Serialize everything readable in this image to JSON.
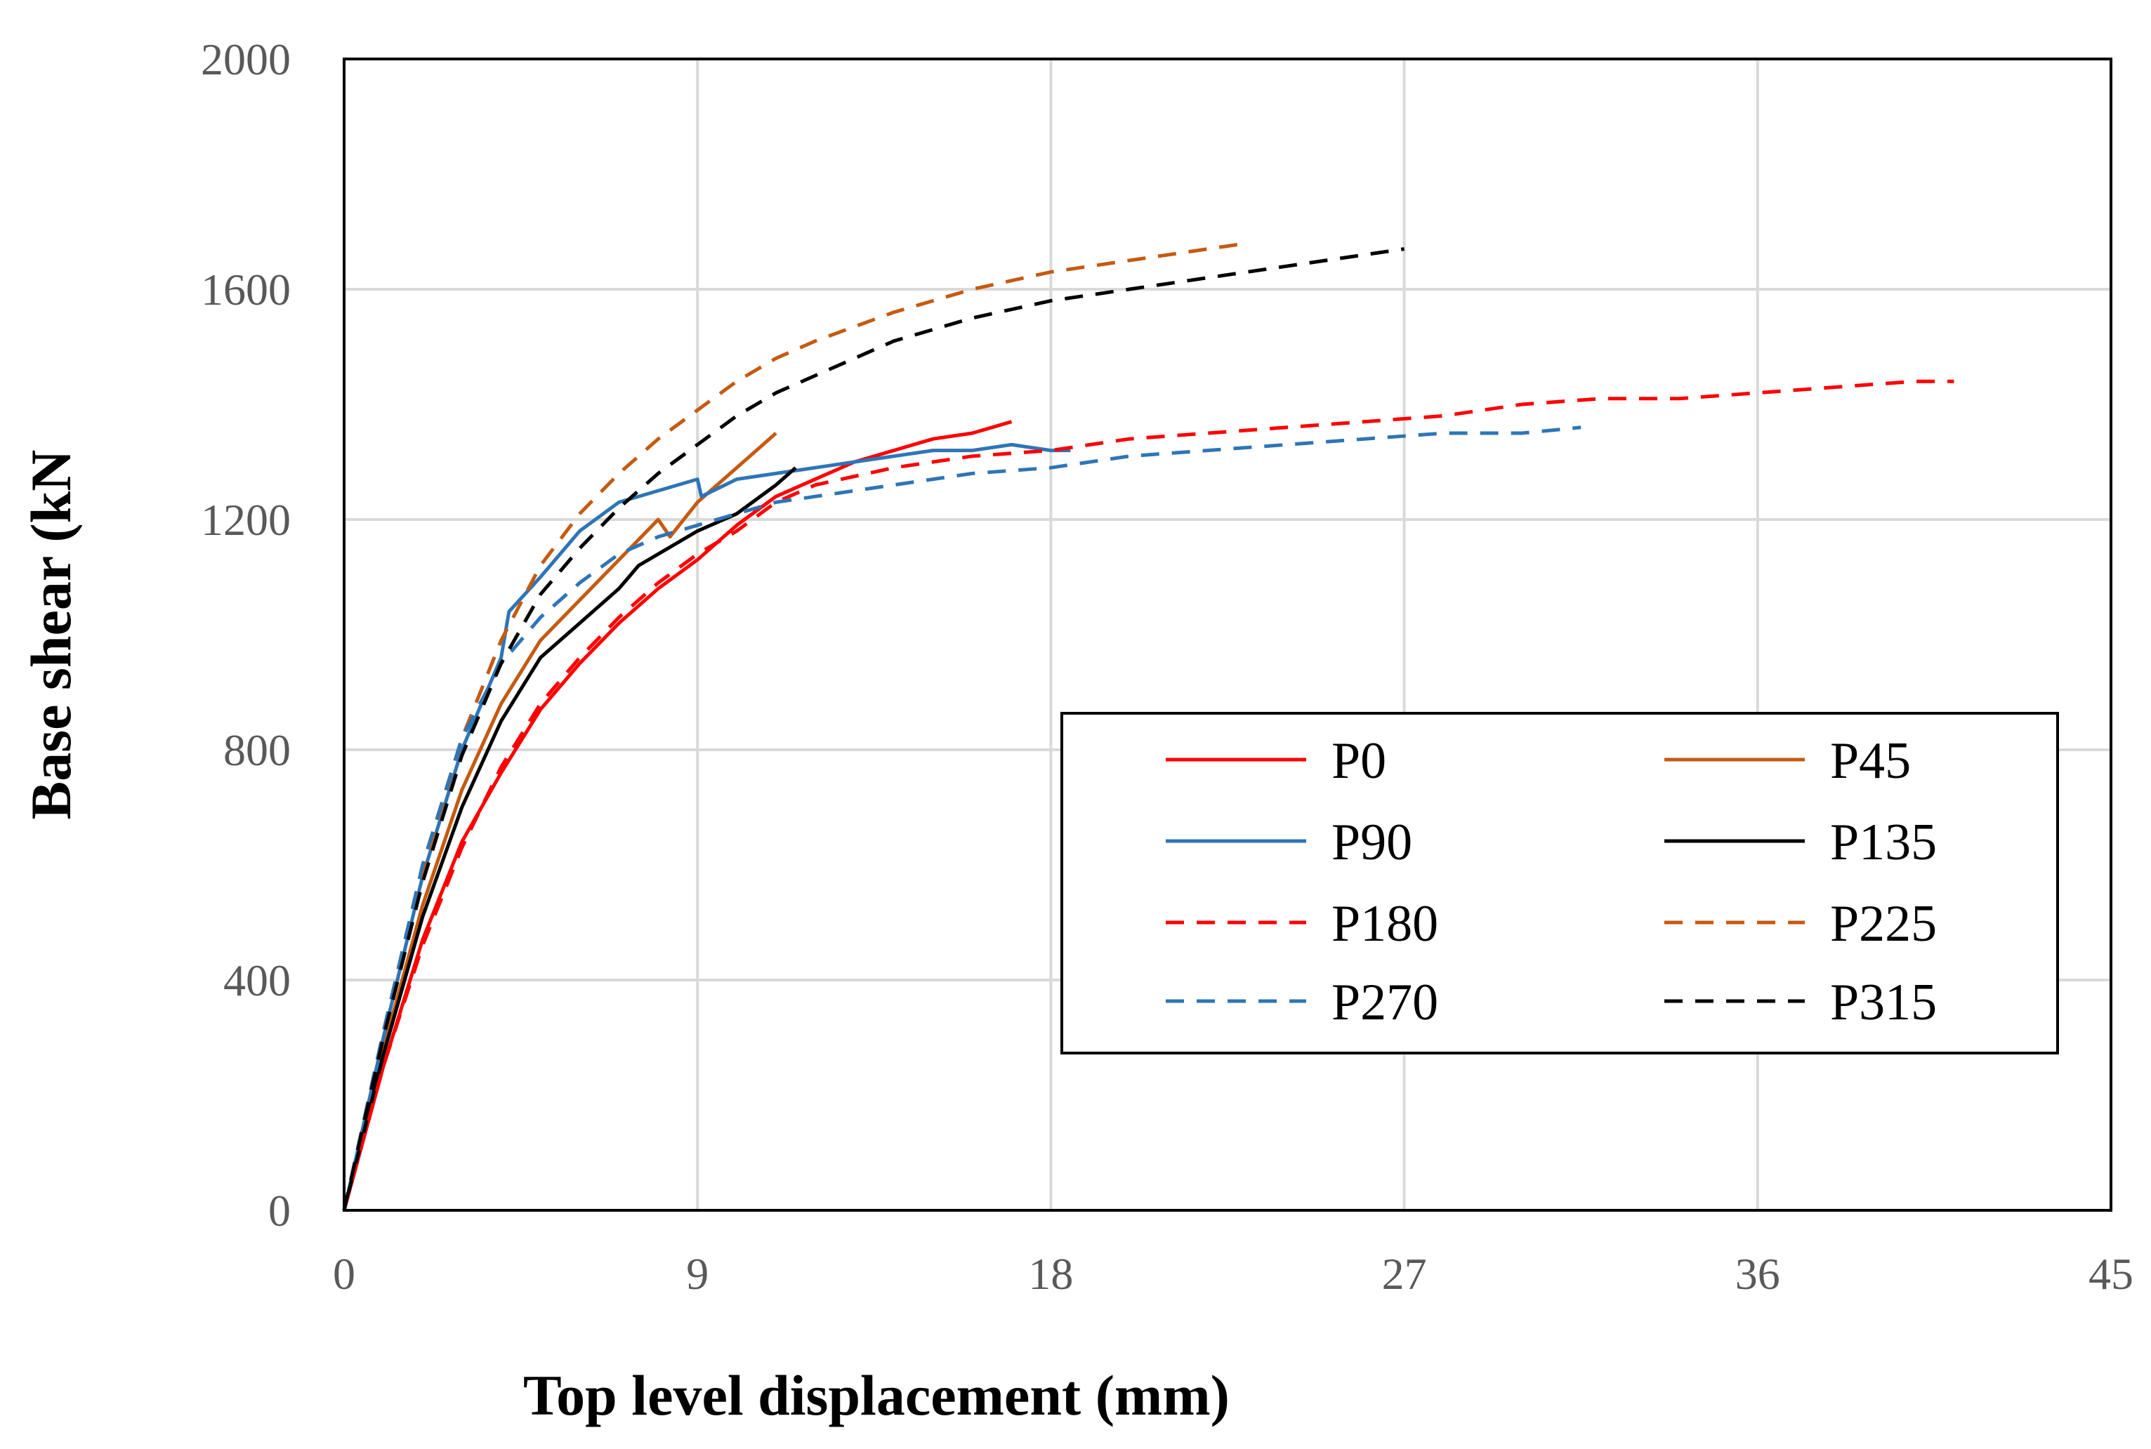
{
  "chart_data": {
    "type": "line",
    "title": "",
    "xlabel": "Top level displacement (mm)",
    "ylabel": "Base shear (kN",
    "xlim": [
      0,
      45
    ],
    "ylim": [
      0,
      2000
    ],
    "xticks": [
      0,
      9,
      18,
      27,
      36,
      45
    ],
    "yticks": [
      0,
      400,
      800,
      1200,
      1600,
      2000
    ],
    "xtick_labels": [
      "0",
      "9",
      "18",
      "27",
      "36",
      "45"
    ],
    "ytick_labels": [
      "0",
      "400",
      "800",
      "1200",
      "1600",
      "2000"
    ],
    "grid": true,
    "legend_position": "center-right",
    "series": [
      {
        "name": "P0",
        "color": "#ff0000",
        "dash": "solid",
        "points": [
          [
            0,
            0
          ],
          [
            1,
            250
          ],
          [
            2,
            470
          ],
          [
            3,
            640
          ],
          [
            4,
            760
          ],
          [
            5,
            870
          ],
          [
            6,
            950
          ],
          [
            7,
            1020
          ],
          [
            8,
            1080
          ],
          [
            9,
            1130
          ],
          [
            10,
            1190
          ],
          [
            11,
            1240
          ],
          [
            12,
            1270
          ],
          [
            13,
            1300
          ],
          [
            14,
            1320
          ],
          [
            15,
            1340
          ],
          [
            16,
            1350
          ],
          [
            17,
            1370
          ]
        ]
      },
      {
        "name": "P45",
        "color": "#c55a11",
        "dash": "solid",
        "points": [
          [
            0,
            0
          ],
          [
            1,
            280
          ],
          [
            2,
            530
          ],
          [
            3,
            730
          ],
          [
            4,
            880
          ],
          [
            5,
            990
          ],
          [
            6,
            1060
          ],
          [
            7,
            1130
          ],
          [
            8,
            1200
          ],
          [
            8.3,
            1170
          ],
          [
            9,
            1230
          ],
          [
            10,
            1290
          ],
          [
            10.5,
            1320
          ],
          [
            11,
            1350
          ]
        ]
      },
      {
        "name": "P90",
        "color": "#2e75b6",
        "dash": "solid",
        "points": [
          [
            0,
            0
          ],
          [
            1,
            300
          ],
          [
            2,
            580
          ],
          [
            3,
            800
          ],
          [
            4,
            960
          ],
          [
            4.2,
            1040
          ],
          [
            5,
            1100
          ],
          [
            6,
            1180
          ],
          [
            7,
            1230
          ],
          [
            8,
            1250
          ],
          [
            9,
            1270
          ],
          [
            9.1,
            1240
          ],
          [
            10,
            1270
          ],
          [
            11,
            1280
          ],
          [
            12,
            1290
          ],
          [
            13,
            1300
          ],
          [
            14,
            1310
          ],
          [
            15,
            1320
          ],
          [
            16,
            1320
          ],
          [
            17,
            1330
          ],
          [
            18,
            1320
          ],
          [
            18.5,
            1320
          ]
        ]
      },
      {
        "name": "P135",
        "color": "#000000",
        "dash": "solid",
        "points": [
          [
            0,
            0
          ],
          [
            1,
            270
          ],
          [
            2,
            510
          ],
          [
            3,
            700
          ],
          [
            4,
            850
          ],
          [
            5,
            960
          ],
          [
            6,
            1020
          ],
          [
            7,
            1080
          ],
          [
            7.5,
            1120
          ],
          [
            8,
            1140
          ],
          [
            9,
            1180
          ],
          [
            10,
            1210
          ],
          [
            11,
            1260
          ],
          [
            11.5,
            1290
          ]
        ]
      },
      {
        "name": "P180",
        "color": "#ff0000",
        "dash": "dashed",
        "points": [
          [
            0,
            0
          ],
          [
            1,
            250
          ],
          [
            2,
            460
          ],
          [
            3,
            630
          ],
          [
            4,
            770
          ],
          [
            5,
            880
          ],
          [
            6,
            960
          ],
          [
            7,
            1030
          ],
          [
            8,
            1090
          ],
          [
            9,
            1140
          ],
          [
            10,
            1180
          ],
          [
            11,
            1230
          ],
          [
            12,
            1260
          ],
          [
            14,
            1290
          ],
          [
            16,
            1310
          ],
          [
            18,
            1320
          ],
          [
            20,
            1340
          ],
          [
            22,
            1350
          ],
          [
            24,
            1360
          ],
          [
            26,
            1370
          ],
          [
            28,
            1380
          ],
          [
            30,
            1400
          ],
          [
            32,
            1410
          ],
          [
            34,
            1410
          ],
          [
            36,
            1420
          ],
          [
            38,
            1430
          ],
          [
            40,
            1440
          ],
          [
            41,
            1440
          ]
        ]
      },
      {
        "name": "P225",
        "color": "#c55a11",
        "dash": "dashed",
        "points": [
          [
            0,
            0
          ],
          [
            1,
            310
          ],
          [
            2,
            590
          ],
          [
            3,
            820
          ],
          [
            4,
            990
          ],
          [
            5,
            1120
          ],
          [
            6,
            1210
          ],
          [
            7,
            1280
          ],
          [
            8,
            1340
          ],
          [
            9,
            1390
          ],
          [
            10,
            1440
          ],
          [
            11,
            1480
          ],
          [
            12,
            1510
          ],
          [
            14,
            1560
          ],
          [
            16,
            1600
          ],
          [
            18,
            1630
          ],
          [
            20,
            1650
          ],
          [
            22,
            1670
          ],
          [
            23,
            1680
          ]
        ]
      },
      {
        "name": "P270",
        "color": "#2e75b6",
        "dash": "dashed",
        "points": [
          [
            0,
            0
          ],
          [
            1,
            310
          ],
          [
            2,
            600
          ],
          [
            3,
            820
          ],
          [
            4,
            950
          ],
          [
            5,
            1030
          ],
          [
            6,
            1090
          ],
          [
            7,
            1140
          ],
          [
            8,
            1170
          ],
          [
            9,
            1190
          ],
          [
            10,
            1210
          ],
          [
            11,
            1230
          ],
          [
            12,
            1240
          ],
          [
            14,
            1260
          ],
          [
            16,
            1280
          ],
          [
            18,
            1290
          ],
          [
            20,
            1310
          ],
          [
            22,
            1320
          ],
          [
            24,
            1330
          ],
          [
            26,
            1340
          ],
          [
            28,
            1350
          ],
          [
            30,
            1350
          ],
          [
            31.5,
            1360
          ]
        ]
      },
      {
        "name": "P315",
        "color": "#000000",
        "dash": "dashed",
        "points": [
          [
            0,
            0
          ],
          [
            1,
            300
          ],
          [
            2,
            570
          ],
          [
            3,
            790
          ],
          [
            4,
            950
          ],
          [
            5,
            1070
          ],
          [
            6,
            1150
          ],
          [
            7,
            1220
          ],
          [
            8,
            1280
          ],
          [
            9,
            1330
          ],
          [
            10,
            1380
          ],
          [
            11,
            1420
          ],
          [
            12,
            1450
          ],
          [
            14,
            1510
          ],
          [
            16,
            1550
          ],
          [
            18,
            1580
          ],
          [
            20,
            1600
          ],
          [
            22,
            1620
          ],
          [
            24,
            1640
          ],
          [
            26,
            1660
          ],
          [
            27,
            1670
          ]
        ]
      }
    ]
  }
}
